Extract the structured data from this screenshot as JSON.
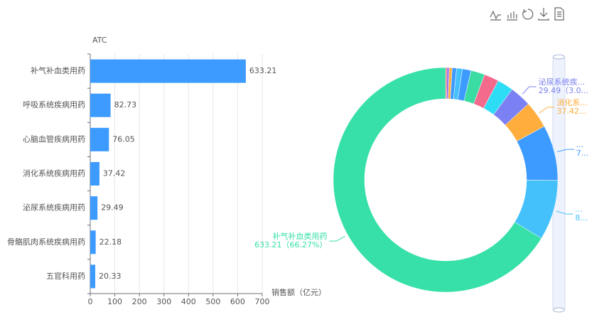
{
  "chart_data": [
    {
      "type": "bar",
      "y_axis_label": "ATC",
      "x_axis_label": "销售额（亿元）",
      "categories": [
        "补气补血类用药",
        "呼吸系统疾病用药",
        "心脑血管疾病用药",
        "消化系统疾病用药",
        "泌尿系统疾病用药",
        "骨骼肌肉系统疾病用药",
        "五官科用药"
      ],
      "values": [
        633.21,
        82.73,
        76.05,
        37.42,
        29.49,
        22.18,
        20.33
      ],
      "color": "#3d9bff",
      "xlim": [
        0,
        700
      ],
      "xticks": [
        0,
        100,
        200,
        300,
        400,
        500,
        600,
        700
      ],
      "grid": true
    },
    {
      "type": "pie",
      "donut": true,
      "labels": [
        null,
        null,
        null,
        null,
        null,
        null,
        null,
        null,
        null,
        "泌尿系统疾...",
        "消化系...",
        "...",
        "...",
        "补气补血类用药"
      ],
      "values": [
        2,
        3,
        4,
        6,
        8,
        12,
        19,
        20.33,
        22.18,
        29.49,
        37.42,
        76.05,
        82.73,
        633.21
      ],
      "value_labels": [
        null,
        null,
        null,
        null,
        null,
        null,
        null,
        null,
        null,
        "29.49（3.0...",
        "37.42...",
        "7...",
        "8...",
        "633.21（66.27%）"
      ],
      "colors": [
        "#e8545b",
        "#9b6cf0",
        "#ffae3d",
        "#3d9bff",
        "#44c1fb",
        "#3d9bff",
        "#3bdca4",
        "#f46a8c",
        "#2ddcf5",
        "#7b81f2",
        "#ffae3d",
        "#3d9bff",
        "#44c1fb",
        "#36e0a8"
      ]
    }
  ]
}
